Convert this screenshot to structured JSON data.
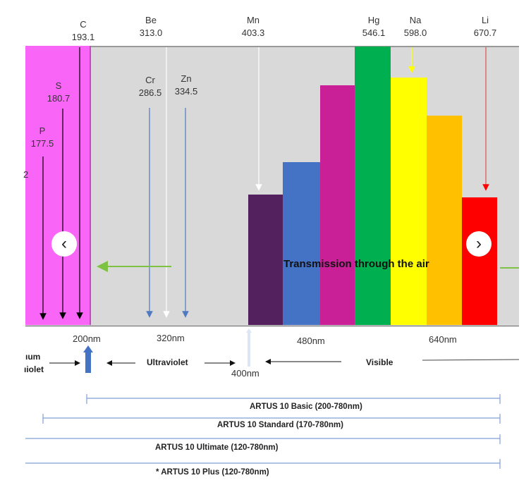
{
  "elements": [
    {
      "symbol": "C",
      "wavelength": "193.1"
    },
    {
      "symbol": "Be",
      "wavelength": "313.0"
    },
    {
      "symbol": "Mn",
      "wavelength": "403.3"
    },
    {
      "symbol": "Hg",
      "wavelength": "546.1"
    },
    {
      "symbol": "Na",
      "wavelength": "598.0"
    },
    {
      "symbol": "Li",
      "wavelength": "670.7"
    },
    {
      "symbol": "S",
      "wavelength": "180.7"
    },
    {
      "symbol": "P",
      "wavelength": "177.5"
    },
    {
      "symbol": "Cr",
      "wavelength": "286.5"
    },
    {
      "symbol": "Zn",
      "wavelength": "334.5"
    }
  ],
  "partial_edge_text": "2",
  "transmission_label": "Transmission through the air",
  "axis_ticks": [
    "200nm",
    "320nm",
    "400nm",
    "480nm",
    "640nm"
  ],
  "regions": {
    "vacuum_uv_line1": "ıum",
    "vacuum_uv_line2": "ıiolet",
    "ultraviolet": "Ultraviolet",
    "visible": "Visible"
  },
  "ranges": [
    {
      "label": "ARTUS 10 Basic (200-780nm)"
    },
    {
      "label": "ARTUS 10 Standard (170-780nm)"
    },
    {
      "label": "ARTUS 10 Ultimate (120-780nm)"
    },
    {
      "label": "* ARTUS 10 Plus (120-780nm)"
    }
  ],
  "nav": {
    "prev": "‹",
    "next": "›"
  },
  "colors": {
    "vacuum": "#f966f7",
    "background": "#d9d9d9",
    "bars": [
      "#54215f",
      "#4472c4",
      "#c91f97",
      "#00b050",
      "#ffff00",
      "#ffc000",
      "#ff0000"
    ],
    "range_line": "#7f9fd4"
  }
}
